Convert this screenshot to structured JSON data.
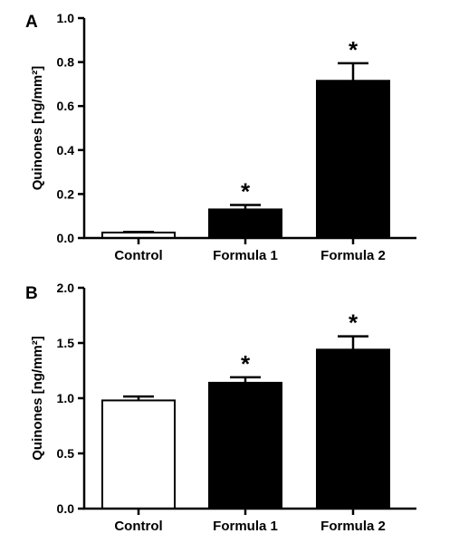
{
  "chart_data": [
    {
      "panel": "A",
      "type": "bar",
      "categories": [
        "Control",
        "Formula 1",
        "Formula 2"
      ],
      "values": [
        0.025,
        0.13,
        0.715
      ],
      "errors": [
        0.003,
        0.02,
        0.08
      ],
      "significance": [
        "",
        "*",
        "*"
      ],
      "bar_fills": [
        "#ffffff",
        "#000000",
        "#000000"
      ],
      "ylabel": "Quinones [ng/mm²]",
      "ylim": [
        0,
        1.0
      ],
      "yticks": [
        "0.0",
        "0.2",
        "0.4",
        "0.6",
        "0.8",
        "1.0"
      ],
      "ytick_values": [
        0,
        0.2,
        0.4,
        0.6,
        0.8,
        1.0
      ],
      "grid": false,
      "legend": "none"
    },
    {
      "panel": "B",
      "type": "bar",
      "categories": [
        "Control",
        "Formula 1",
        "Formula 2"
      ],
      "values": [
        0.98,
        1.14,
        1.44
      ],
      "errors": [
        0.035,
        0.05,
        0.12
      ],
      "significance": [
        "",
        "*",
        "*"
      ],
      "bar_fills": [
        "#ffffff",
        "#000000",
        "#000000"
      ],
      "ylabel": "Quinones [ng/mm²]",
      "ylim": [
        0,
        2.0
      ],
      "yticks": [
        "0.0",
        "0.5",
        "1.0",
        "1.5",
        "2.0"
      ],
      "ytick_values": [
        0,
        0.5,
        1.0,
        1.5,
        2.0
      ],
      "grid": false,
      "legend": "none"
    }
  ]
}
